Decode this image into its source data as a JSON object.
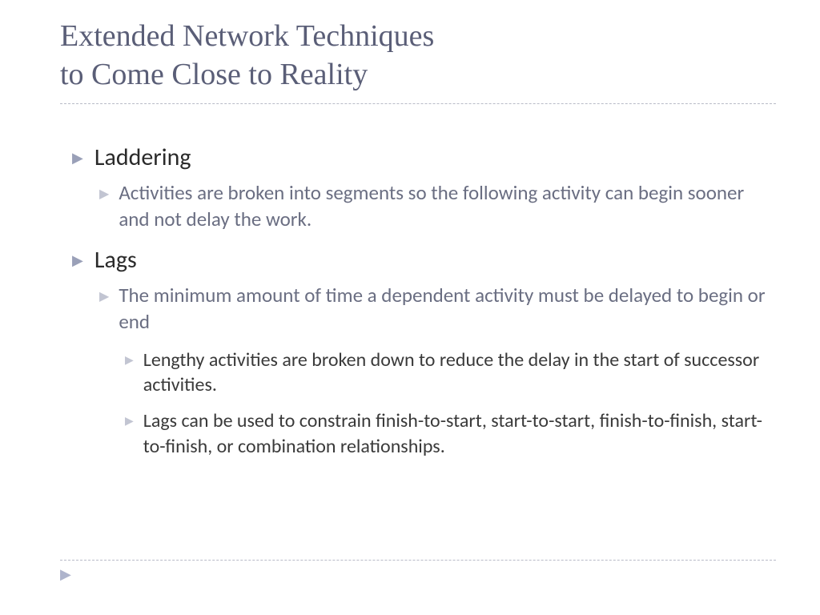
{
  "title_line1": "Extended Network Techniques",
  "title_line2": "to Come Close to Reality",
  "colors": {
    "title_text": "#5a5e77",
    "dashed_rule": "#b8bbc7",
    "l1_arrow": "#9aa0b8",
    "l1_text": "#2a2a2a",
    "l2_arrow": "#c2c5d2",
    "l2_text": "#6a6e82",
    "l3_arrow": "#c2c5d2",
    "l3_text": "#3a3a3a",
    "footer_arrow": "#aeb4cc",
    "background": "#ffffff"
  },
  "typography": {
    "title_font": "Georgia serif",
    "title_size_pt": 28,
    "body_font": "Gill Sans",
    "l1_size_pt": 22,
    "l2_size_pt": 19,
    "l3_size_pt": 18
  },
  "bullets": {
    "b1": {
      "label": "Laddering"
    },
    "b1_1": {
      "text": "Activities are broken into segments so the following activity can begin sooner and not delay the work."
    },
    "b2": {
      "label": "Lags"
    },
    "b2_1": {
      "text": "The minimum amount of time a dependent activity must be delayed to begin or end"
    },
    "b2_1_1": {
      "text": "Lengthy activities are broken down to reduce the delay in the start of successor activities."
    },
    "b2_1_2": {
      "text": "Lags can be used to constrain finish-to-start, start-to-start, finish-to-finish, start-to-finish, or combination relationships."
    }
  }
}
